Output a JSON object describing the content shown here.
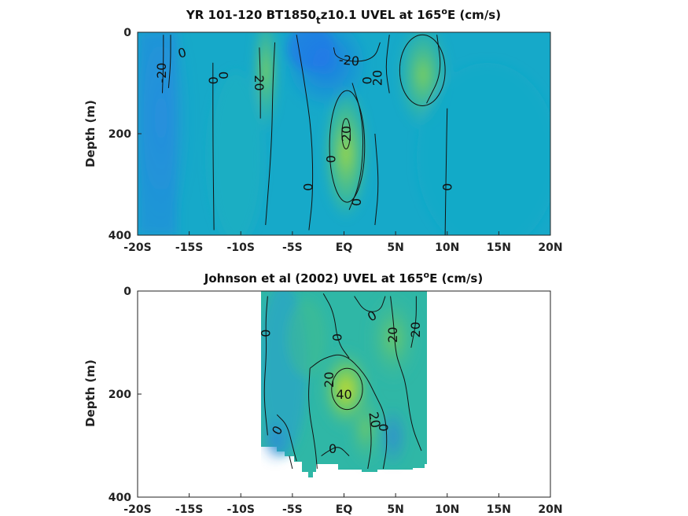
{
  "chart_data": [
    {
      "type": "heatmap",
      "title": {
        "pre": "YR 101-120 BT1850",
        "sub": "t",
        "mid": "z10.1 UVEL at 165",
        "sup": "o",
        "post": "E (cm/s)"
      },
      "ylabel": "Depth (m)",
      "x_ticks": [
        "-20S",
        "-15S",
        "-10S",
        "-5S",
        "EQ",
        "5N",
        "10N",
        "15N",
        "20N"
      ],
      "y_ticks": [
        "0",
        "200",
        "400"
      ],
      "xlim": [
        -20,
        20
      ],
      "ylim": [
        0,
        400
      ],
      "y_reversed": true,
      "contour_labels": [
        {
          "text": "0",
          "lat": -15.7,
          "depth": 40,
          "rot": -15
        },
        {
          "text": "-20",
          "lat": -17.7,
          "depth": 80,
          "rot": -90
        },
        {
          "text": "0",
          "lat": -12.7,
          "depth": 95,
          "rot": -90
        },
        {
          "text": "0",
          "lat": -11.7,
          "depth": 85,
          "rot": -90
        },
        {
          "text": "20",
          "lat": -8.2,
          "depth": 100,
          "rot": 90
        },
        {
          "text": "-20",
          "lat": 0.5,
          "depth": 55,
          "rot": 5
        },
        {
          "text": "0",
          "lat": 2.2,
          "depth": 95,
          "rot": -90
        },
        {
          "text": "20",
          "lat": 3.2,
          "depth": 90,
          "rot": -90
        },
        {
          "text": "0",
          "lat": -1.3,
          "depth": 250,
          "rot": -90
        },
        {
          "text": "20",
          "lat": 0.2,
          "depth": 200,
          "rot": -90
        },
        {
          "text": "0",
          "lat": -3.5,
          "depth": 305,
          "rot": -90
        },
        {
          "text": "0",
          "lat": 1.2,
          "depth": 335,
          "rot": -90
        },
        {
          "text": "0",
          "lat": 10,
          "depth": 305,
          "rot": -90
        }
      ],
      "contour_lines": [
        [
          [
            -17.5,
            5
          ],
          [
            -17.5,
            60
          ],
          [
            -17.6,
            120
          ]
        ],
        [
          [
            -16.8,
            5
          ],
          [
            -16.8,
            60
          ],
          [
            -17.0,
            110
          ]
        ],
        [
          [
            -12.7,
            60
          ],
          [
            -12.7,
            220
          ],
          [
            -12.6,
            390
          ]
        ],
        [
          [
            -8.2,
            30
          ],
          [
            -8.1,
            90
          ],
          [
            -8.1,
            170
          ]
        ],
        [
          [
            -6.7,
            20
          ],
          [
            -6.9,
            100
          ],
          [
            -7.0,
            220
          ],
          [
            -7.6,
            380
          ]
        ],
        [
          [
            -4.6,
            5
          ],
          [
            -3.9,
            90
          ],
          [
            -3.1,
            200
          ],
          [
            -3.0,
            320
          ],
          [
            -3.4,
            390
          ]
        ],
        [
          [
            0.8,
            100
          ],
          [
            1.7,
            160
          ],
          [
            1.9,
            230
          ],
          [
            1.5,
            300
          ],
          [
            0.5,
            350
          ]
        ],
        [
          [
            3.0,
            200
          ],
          [
            3.4,
            300
          ],
          [
            3.0,
            380
          ]
        ],
        [
          [
            4.4,
            5
          ],
          [
            4.0,
            70
          ],
          [
            4.4,
            120
          ]
        ],
        [
          [
            10.0,
            150
          ],
          [
            9.9,
            250
          ],
          [
            9.8,
            400
          ]
        ],
        [
          [
            -1.0,
            30
          ],
          [
            -0.8,
            50
          ],
          [
            1.2,
            60
          ],
          [
            3.0,
            50
          ],
          [
            3.5,
            20
          ]
        ],
        [
          [
            9.0,
            5
          ],
          [
            9.5,
            80
          ],
          [
            8.0,
            140
          ]
        ]
      ],
      "contour_ellipses": [
        {
          "lat": 0.3,
          "depth": 225,
          "rlat": 1.7,
          "rdepth": 110
        },
        {
          "lat": 0.2,
          "depth": 200,
          "rlat": 0.4,
          "rdepth": 30
        },
        {
          "lat": 7.6,
          "depth": 75,
          "rlat": 2.2,
          "rdepth": 70
        }
      ]
    },
    {
      "type": "heatmap",
      "title": {
        "pre": "Johnson et al (2002) UVEL at 165",
        "sup": "o",
        "post": "E (cm/s)"
      },
      "ylabel": "Depth (m)",
      "x_ticks": [
        "-20S",
        "-15S",
        "-10S",
        "-5S",
        "EQ",
        "5N",
        "10N",
        "15N",
        "20N"
      ],
      "y_ticks": [
        "0",
        "200",
        "400"
      ],
      "xlim": [
        -20,
        20
      ],
      "ylim": [
        0,
        400
      ],
      "y_reversed": true,
      "data_extent_lat": [
        -8,
        8
      ],
      "contour_labels": [
        {
          "text": "0",
          "lat": -7.6,
          "depth": 82,
          "rot": -90
        },
        {
          "text": "0",
          "lat": -0.7,
          "depth": 90,
          "rot": -90
        },
        {
          "text": "0",
          "lat": 2.7,
          "depth": 48,
          "rot": -30
        },
        {
          "text": "20",
          "lat": 4.7,
          "depth": 85,
          "rot": -90
        },
        {
          "text": "20",
          "lat": 6.9,
          "depth": 75,
          "rot": -90
        },
        {
          "text": "20",
          "lat": -1.5,
          "depth": 172,
          "rot": -90
        },
        {
          "text": "40",
          "lat": 0.0,
          "depth": 200,
          "rot": 0
        },
        {
          "text": "20",
          "lat": 3.0,
          "depth": 250,
          "rot": 80
        },
        {
          "text": "0",
          "lat": 3.8,
          "depth": 265,
          "rot": -90
        },
        {
          "text": "0",
          "lat": -6.5,
          "depth": 270,
          "rot": -60
        },
        {
          "text": "0",
          "lat": -1.1,
          "depth": 305,
          "rot": 0
        }
      ],
      "contour_lines": [
        [
          [
            -7.4,
            10
          ],
          [
            -7.6,
            60
          ],
          [
            -7.5,
            120
          ],
          [
            -7.8,
            200
          ],
          [
            -7.4,
            280
          ]
        ],
        [
          [
            -2.0,
            5
          ],
          [
            -1.0,
            40
          ],
          [
            -0.6,
            100
          ],
          [
            0.5,
            130
          ]
        ],
        [
          [
            1.0,
            10
          ],
          [
            2.0,
            40
          ],
          [
            3.5,
            40
          ],
          [
            4.0,
            10
          ]
        ],
        [
          [
            4.5,
            10
          ],
          [
            4.8,
            60
          ],
          [
            5.0,
            120
          ],
          [
            5.5,
            150
          ]
        ],
        [
          [
            7.0,
            10
          ],
          [
            7.0,
            60
          ],
          [
            6.5,
            110
          ]
        ],
        [
          [
            -3.3,
            150
          ],
          [
            -2.0,
            130
          ],
          [
            0.0,
            120
          ],
          [
            2.0,
            160
          ],
          [
            3.0,
            200
          ],
          [
            4.0,
            240
          ],
          [
            4.2,
            300
          ],
          [
            3.8,
            345
          ]
        ],
        [
          [
            -3.3,
            150
          ],
          [
            -3.5,
            220
          ],
          [
            -2.8,
            300
          ],
          [
            -2.6,
            345
          ]
        ],
        [
          [
            -6.5,
            240
          ],
          [
            -5.5,
            260
          ],
          [
            -5.0,
            300
          ],
          [
            -4.6,
            330
          ]
        ],
        [
          [
            -2.2,
            320
          ],
          [
            -1.5,
            310
          ],
          [
            -0.5,
            300
          ],
          [
            0.5,
            320
          ]
        ],
        [
          [
            2.5,
            240
          ],
          [
            2.7,
            300
          ],
          [
            2.3,
            345
          ]
        ],
        [
          [
            5.5,
            150
          ],
          [
            6.0,
            180
          ],
          [
            6.5,
            260
          ],
          [
            7.5,
            310
          ]
        ],
        [
          [
            -5.3,
            320
          ],
          [
            -5.0,
            345
          ]
        ]
      ],
      "contour_ellipses": [
        {
          "lat": 0.3,
          "depth": 190,
          "rlat": 1.5,
          "rdepth": 40
        }
      ]
    }
  ]
}
